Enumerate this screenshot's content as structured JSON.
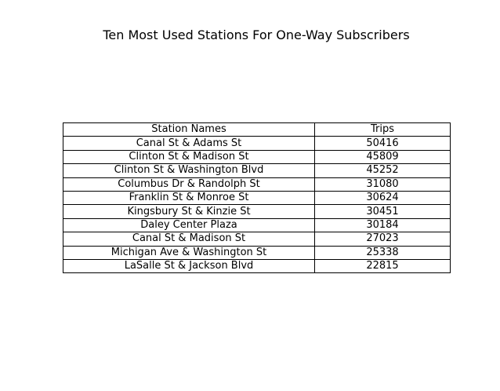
{
  "chart_data": {
    "type": "table",
    "title": "Ten Most Used Stations For One-Way Subscribers",
    "columns": [
      "Station Names",
      "Trips"
    ],
    "rows": [
      [
        "Canal St & Adams St",
        50416
      ],
      [
        "Clinton St & Madison St",
        45809
      ],
      [
        "Clinton St & Washington Blvd",
        45252
      ],
      [
        "Columbus Dr & Randolph St",
        31080
      ],
      [
        "Franklin St & Monroe St",
        30624
      ],
      [
        "Kingsbury St & Kinzie St",
        30451
      ],
      [
        "Daley Center Plaza",
        30184
      ],
      [
        "Canal St & Madison St",
        27023
      ],
      [
        "Michigan Ave & Washington St",
        25338
      ],
      [
        "LaSalle St & Jackson Blvd",
        22815
      ]
    ],
    "border_color": "#000000",
    "background_color": "#ffffff"
  }
}
